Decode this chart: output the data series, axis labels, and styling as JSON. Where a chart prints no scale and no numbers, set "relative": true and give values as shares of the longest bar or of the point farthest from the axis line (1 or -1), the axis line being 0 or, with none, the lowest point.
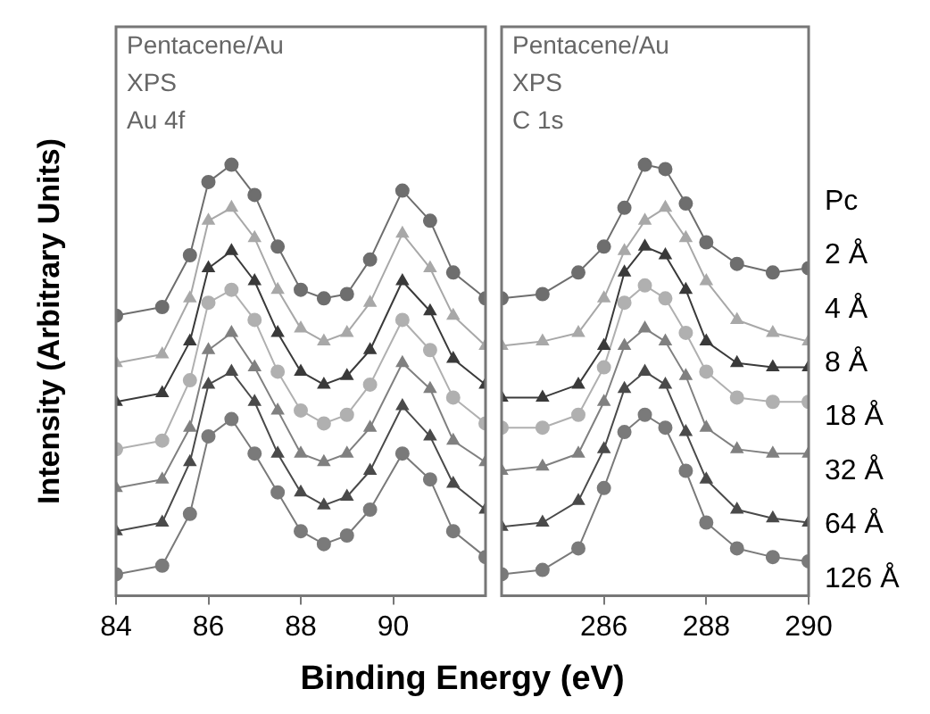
{
  "chart_data": [
    {
      "type": "line",
      "relative": true,
      "xlabel": "Binding Energy (eV)",
      "ylabel": "Intensity (Arbitrary Units)",
      "xlim": [
        84,
        92
      ],
      "xticks": [
        84,
        86,
        88,
        90
      ],
      "annotations": [
        "Pentacene/Au",
        "XPS",
        "Au 4f"
      ],
      "x": [
        84,
        85,
        85.6,
        86,
        86.5,
        87,
        87.5,
        88,
        88.5,
        89,
        89.5,
        90.2,
        90.8,
        91.3,
        92
      ],
      "series": [
        {
          "color": "#6e6e6e",
          "marker": "circle",
          "values": [
            0.65,
            0.67,
            0.79,
            0.96,
            1.0,
            0.93,
            0.81,
            0.71,
            0.69,
            0.7,
            0.78,
            0.94,
            0.87,
            0.75,
            0.69
          ]
        },
        {
          "color": "#a8a8a8",
          "marker": "triangle",
          "values": [
            0.54,
            0.56,
            0.69,
            0.87,
            0.9,
            0.83,
            0.71,
            0.62,
            0.59,
            0.61,
            0.68,
            0.84,
            0.76,
            0.65,
            0.58
          ]
        },
        {
          "color": "#3a3a3a",
          "marker": "triangle",
          "values": [
            0.45,
            0.47,
            0.59,
            0.76,
            0.8,
            0.73,
            0.61,
            0.52,
            0.49,
            0.51,
            0.57,
            0.73,
            0.66,
            0.55,
            0.49
          ]
        },
        {
          "color": "#b0b0b0",
          "marker": "circle",
          "values": [
            0.34,
            0.36,
            0.5,
            0.68,
            0.71,
            0.64,
            0.52,
            0.43,
            0.4,
            0.42,
            0.49,
            0.64,
            0.57,
            0.46,
            0.4
          ]
        },
        {
          "color": "#808080",
          "marker": "triangle",
          "values": [
            0.25,
            0.27,
            0.39,
            0.57,
            0.61,
            0.53,
            0.43,
            0.33,
            0.31,
            0.33,
            0.39,
            0.54,
            0.48,
            0.36,
            0.31
          ]
        },
        {
          "color": "#4a4a4a",
          "marker": "triangle",
          "values": [
            0.15,
            0.17,
            0.31,
            0.49,
            0.52,
            0.45,
            0.33,
            0.24,
            0.21,
            0.23,
            0.29,
            0.44,
            0.37,
            0.26,
            0.2
          ]
        },
        {
          "color": "#7a7a7a",
          "marker": "circle",
          "values": [
            0.05,
            0.07,
            0.19,
            0.37,
            0.41,
            0.33,
            0.24,
            0.15,
            0.12,
            0.14,
            0.2,
            0.33,
            0.27,
            0.15,
            0.09
          ]
        }
      ]
    },
    {
      "type": "line",
      "relative": true,
      "xlim": [
        284,
        290
      ],
      "xticks": [
        286,
        288,
        290
      ],
      "annotations": [
        "Pentacene/Au",
        "XPS",
        "C 1s",
        "Pc",
        "2 Å",
        "4 Å",
        "8 Å",
        "18 Å",
        "32 Å",
        "64 Å",
        "126 Å"
      ],
      "x": [
        284,
        284.8,
        285.5,
        286,
        286.4,
        286.8,
        287.2,
        287.6,
        288,
        288.6,
        289.3,
        290
      ],
      "series": [
        {
          "color": "#6e6e6e",
          "marker": "circle",
          "values": [
            0.69,
            0.7,
            0.75,
            0.81,
            0.9,
            1.0,
            0.99,
            0.91,
            0.82,
            0.77,
            0.75,
            0.76
          ]
        },
        {
          "color": "#a8a8a8",
          "marker": "triangle",
          "values": [
            0.58,
            0.59,
            0.61,
            0.69,
            0.8,
            0.87,
            0.9,
            0.83,
            0.73,
            0.64,
            0.61,
            0.59
          ]
        },
        {
          "color": "#3a3a3a",
          "marker": "triangle",
          "values": [
            0.46,
            0.46,
            0.49,
            0.58,
            0.75,
            0.81,
            0.79,
            0.71,
            0.59,
            0.54,
            0.53,
            0.53
          ]
        },
        {
          "color": "#b0b0b0",
          "marker": "circle",
          "values": [
            0.39,
            0.39,
            0.42,
            0.53,
            0.68,
            0.72,
            0.69,
            0.61,
            0.52,
            0.46,
            0.45,
            0.45
          ]
        },
        {
          "color": "#808080",
          "marker": "triangle",
          "values": [
            0.29,
            0.3,
            0.33,
            0.45,
            0.58,
            0.62,
            0.59,
            0.51,
            0.39,
            0.34,
            0.33,
            0.33
          ]
        },
        {
          "color": "#4a4a4a",
          "marker": "triangle",
          "values": [
            0.16,
            0.17,
            0.22,
            0.34,
            0.48,
            0.52,
            0.49,
            0.38,
            0.27,
            0.2,
            0.18,
            0.17
          ]
        },
        {
          "color": "#7a7a7a",
          "marker": "circle",
          "values": [
            0.05,
            0.06,
            0.11,
            0.25,
            0.38,
            0.42,
            0.39,
            0.29,
            0.17,
            0.11,
            0.09,
            0.08
          ]
        }
      ]
    }
  ]
}
